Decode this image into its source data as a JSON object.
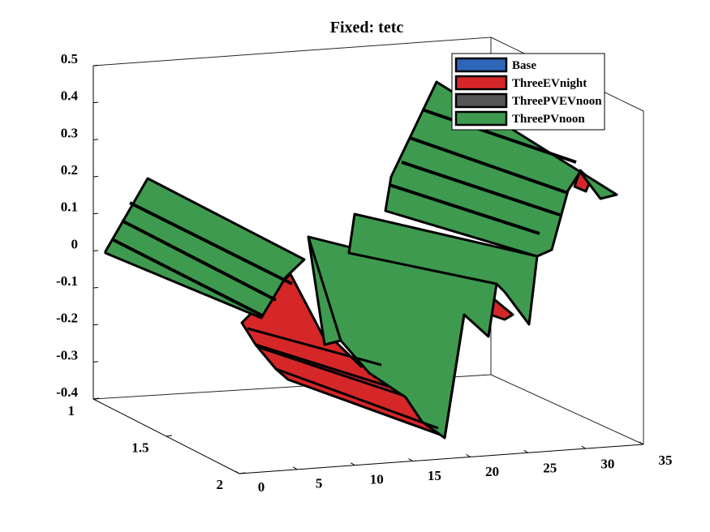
{
  "chart_data": {
    "type": "surface3d",
    "title": "Fixed: tetc",
    "xlabel": "",
    "ylabel": "",
    "zlabel": "",
    "xlim": [
      0,
      35
    ],
    "ylim": [
      1,
      2
    ],
    "zlim": [
      -0.4,
      0.5
    ],
    "x_ticks": [
      "0",
      "5",
      "10",
      "15",
      "20",
      "25",
      "30",
      "35"
    ],
    "y_ticks": [
      "1",
      "1.5",
      "2"
    ],
    "z_ticks": [
      "0.5",
      "0.4",
      "0.3",
      "0.2",
      "0.1",
      "0",
      "-0.1",
      "-0.2",
      "-0.3",
      "-0.4"
    ],
    "legend": {
      "position": "top-right",
      "entries": [
        {
          "name": "Base",
          "color": "#2F65B7"
        },
        {
          "name": "ThreeEVnight",
          "color": "#D62728"
        },
        {
          "name": "ThreePVEVnoon",
          "color": "#555555"
        },
        {
          "name": "ThreePVnoon",
          "color": "#3E9A4F"
        }
      ]
    },
    "series": [
      {
        "name": "ThreePVnoon",
        "color": "#3E9A4F",
        "x": [
          1,
          3,
          4,
          5,
          12,
          13,
          19,
          20,
          23,
          24,
          25,
          28,
          29,
          31,
          32
        ],
        "z": [
          0.0,
          0.2,
          0.2,
          0.1,
          -0.02,
          -0.05,
          -0.22,
          0.2,
          0.05,
          -0.05,
          0.05,
          0.3,
          0.45,
          0.2,
          0.15
        ]
      },
      {
        "name": "ThreeEVnight",
        "color": "#D62728",
        "x": [
          1,
          3,
          4,
          5,
          12,
          13,
          14,
          15,
          16,
          17,
          18,
          19,
          20
        ],
        "z": [
          0.0,
          0.2,
          0.2,
          0.1,
          -0.02,
          0.0,
          -0.22,
          -0.22,
          -0.32,
          -0.35,
          -0.4,
          -0.4,
          -0.4
        ]
      }
    ]
  }
}
